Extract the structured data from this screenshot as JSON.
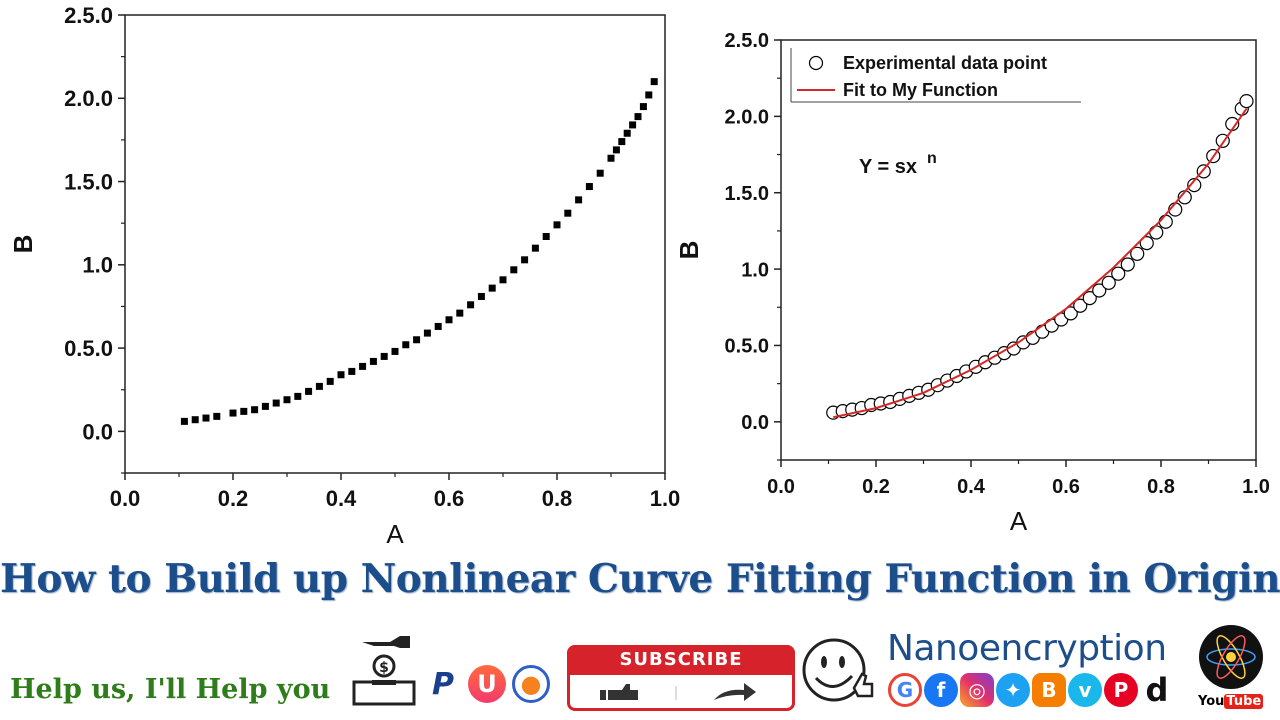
{
  "chart_data": [
    {
      "type": "scatter",
      "xlabel": "A",
      "ylabel": "B",
      "xlim": [
        0.0,
        1.0
      ],
      "ylim": [
        -0.25,
        2.5
      ],
      "xticks": [
        "0.0",
        "0.2",
        "0.4",
        "0.6",
        "0.8",
        "1.0"
      ],
      "yticks": [
        "0.0",
        "0.5.0",
        "1.0",
        "1.5.0",
        "2.0.0",
        "2.5.0"
      ],
      "ytick_values": [
        0.0,
        0.5,
        1.0,
        1.5,
        2.0,
        2.5
      ],
      "marker": "filled-square",
      "color": "#000000",
      "x": [
        0.11,
        0.13,
        0.15,
        0.17,
        0.2,
        0.22,
        0.24,
        0.26,
        0.28,
        0.3,
        0.32,
        0.34,
        0.36,
        0.38,
        0.4,
        0.42,
        0.44,
        0.46,
        0.48,
        0.5,
        0.52,
        0.54,
        0.56,
        0.58,
        0.6,
        0.62,
        0.64,
        0.66,
        0.68,
        0.7,
        0.72,
        0.74,
        0.76,
        0.78,
        0.8,
        0.82,
        0.84,
        0.86,
        0.88,
        0.9,
        0.91,
        0.92,
        0.93,
        0.94,
        0.95,
        0.96,
        0.97,
        0.98
      ],
      "y": [
        0.06,
        0.07,
        0.08,
        0.09,
        0.11,
        0.12,
        0.13,
        0.15,
        0.17,
        0.19,
        0.21,
        0.24,
        0.27,
        0.3,
        0.34,
        0.36,
        0.39,
        0.42,
        0.45,
        0.48,
        0.52,
        0.55,
        0.59,
        0.63,
        0.67,
        0.71,
        0.76,
        0.81,
        0.86,
        0.91,
        0.97,
        1.03,
        1.1,
        1.17,
        1.24,
        1.31,
        1.39,
        1.47,
        1.55,
        1.64,
        1.69,
        1.74,
        1.79,
        1.84,
        1.89,
        1.95,
        2.02,
        2.1
      ]
    },
    {
      "type": "scatter",
      "xlabel": "A",
      "ylabel": "B",
      "xlim": [
        0.0,
        1.0
      ],
      "ylim": [
        -0.25,
        2.5
      ],
      "xticks": [
        "0.0",
        "0.2",
        "0.4",
        "0.6",
        "0.8",
        "1.0"
      ],
      "yticks": [
        "0.0",
        "0.5.0",
        "1.0",
        "1.5.0",
        "2.0.0",
        "2.5.0"
      ],
      "ytick_values": [
        0.0,
        0.5,
        1.0,
        1.5,
        2.0,
        2.5
      ],
      "annotation": "Y = sx",
      "annotation_sup": "n",
      "legend_position": "top-left",
      "series": [
        {
          "name": "Experimental data point",
          "marker": "open-circle",
          "color": "#000000",
          "x": [
            0.11,
            0.13,
            0.15,
            0.17,
            0.19,
            0.21,
            0.23,
            0.25,
            0.27,
            0.29,
            0.31,
            0.33,
            0.35,
            0.37,
            0.39,
            0.41,
            0.43,
            0.45,
            0.47,
            0.49,
            0.51,
            0.53,
            0.55,
            0.57,
            0.59,
            0.61,
            0.63,
            0.65,
            0.67,
            0.69,
            0.71,
            0.73,
            0.75,
            0.77,
            0.79,
            0.81,
            0.83,
            0.85,
            0.87,
            0.89,
            0.91,
            0.93,
            0.95,
            0.97,
            0.98
          ],
          "y": [
            0.06,
            0.07,
            0.08,
            0.09,
            0.11,
            0.12,
            0.13,
            0.15,
            0.17,
            0.19,
            0.21,
            0.24,
            0.27,
            0.3,
            0.33,
            0.36,
            0.39,
            0.42,
            0.45,
            0.48,
            0.52,
            0.55,
            0.59,
            0.63,
            0.67,
            0.71,
            0.76,
            0.81,
            0.86,
            0.91,
            0.97,
            1.03,
            1.1,
            1.17,
            1.24,
            1.31,
            1.39,
            1.47,
            1.55,
            1.64,
            1.74,
            1.84,
            1.95,
            2.05,
            2.1
          ]
        },
        {
          "name": "Fit to My Function",
          "type": "line",
          "color": "#d62728",
          "x": [
            0.11,
            0.2,
            0.3,
            0.4,
            0.5,
            0.6,
            0.7,
            0.8,
            0.9,
            0.98
          ],
          "y": [
            0.03,
            0.09,
            0.19,
            0.34,
            0.52,
            0.74,
            1.01,
            1.32,
            1.69,
            2.05
          ]
        }
      ]
    }
  ],
  "title": "How to Build up Nonlinear Curve Fitting Function in Origin",
  "footer": {
    "help_text": "Help us, I'll Help you",
    "subscribe_label": "SUBSCRIBE",
    "brand": "Nanoencryption",
    "youtube_you": "You",
    "youtube_tube": "Tube"
  },
  "colors": {
    "title": "#1d4e8c",
    "help_text": "#2e7d1a",
    "fit_line": "#d62728",
    "subscribe": "#d6232b"
  },
  "icons": [
    "hand-coin-donate-icon",
    "paypal-icon",
    "u-pay-icon",
    "payoneer-icon",
    "smiley-icon",
    "atom-logo-icon",
    "google-icon",
    "facebook-icon",
    "instagram-icon",
    "twitter-icon",
    "blogger-icon",
    "vimeo-icon",
    "pinterest-icon",
    "dailymotion-icon"
  ]
}
